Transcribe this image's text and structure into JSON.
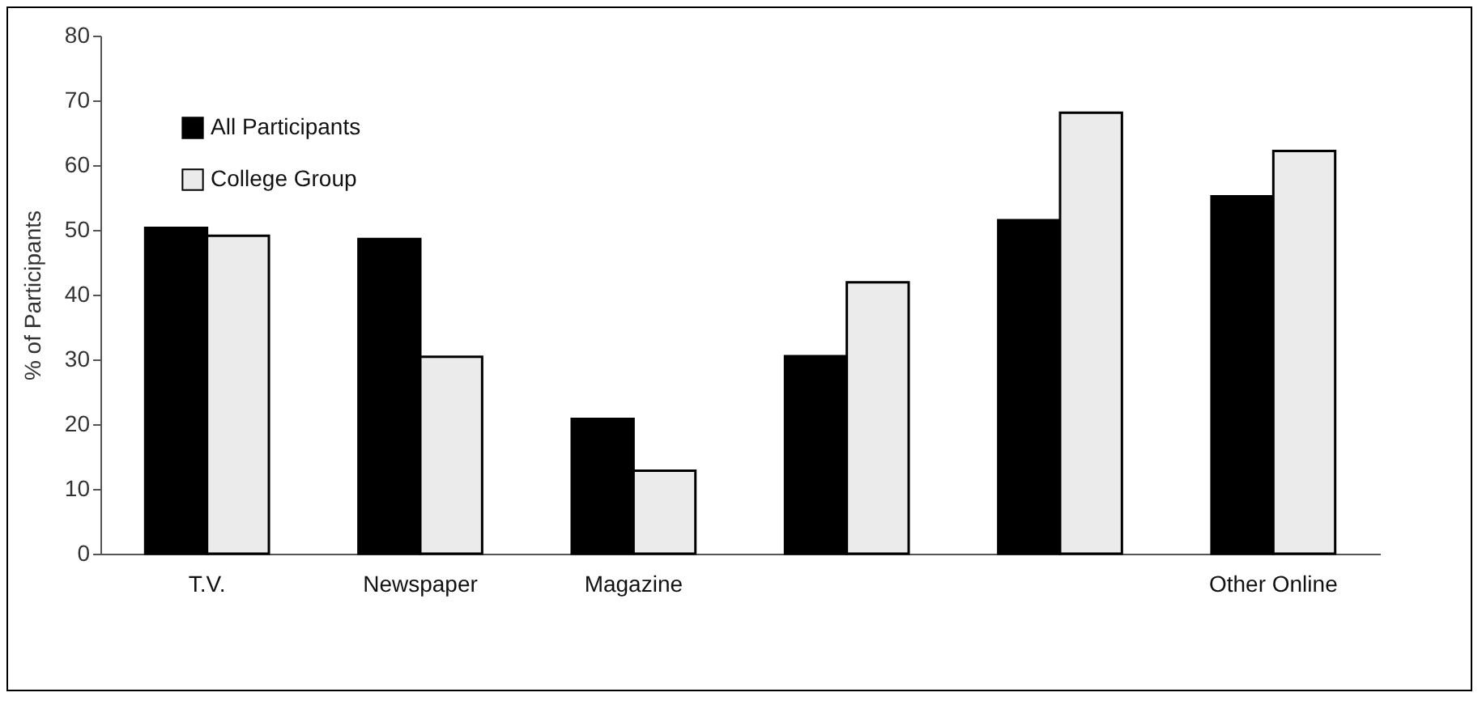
{
  "chart_data": {
    "type": "bar",
    "ylabel": "% of Participants",
    "categories": [
      "T.V.",
      "Newspaper",
      "Magazine",
      null,
      null,
      "Other Online"
    ],
    "series": [
      {
        "name": "All Participants",
        "color": "#000000",
        "values": [
          50.3,
          48.6,
          20.8,
          30.5,
          51.5,
          55.2
        ]
      },
      {
        "name": "College Group",
        "color": "#ebebeb",
        "values": [
          49.1,
          30.4,
          12.8,
          41.9,
          68.1,
          62.2
        ]
      }
    ],
    "ylim": [
      0,
      80
    ],
    "yticks": [
      0,
      10,
      20,
      30,
      40,
      50,
      60,
      70,
      80
    ],
    "grid": false,
    "legend": "top left"
  }
}
